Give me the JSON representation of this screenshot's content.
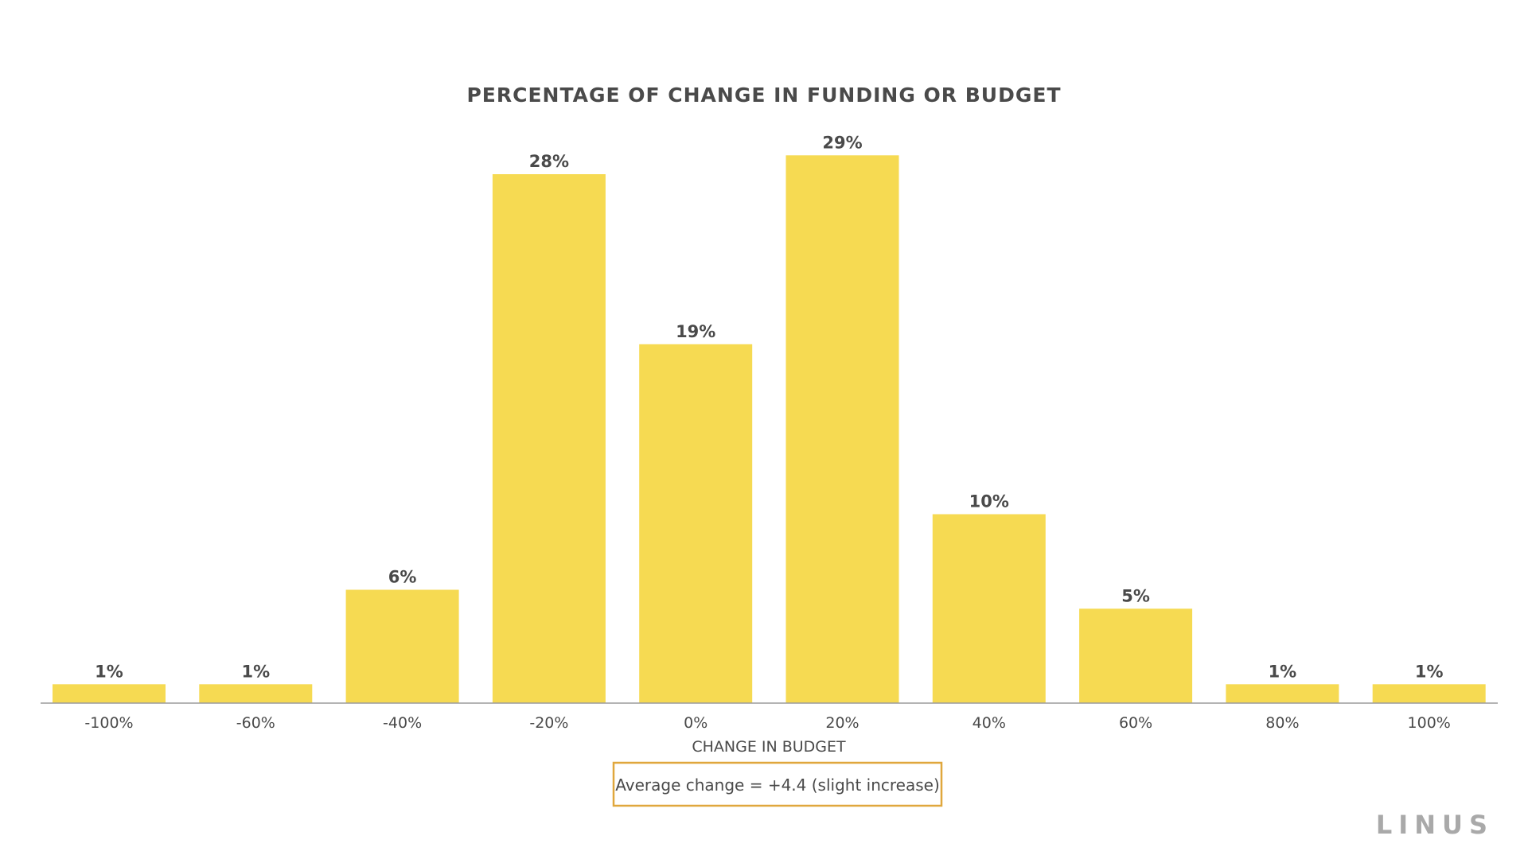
{
  "chart_data": {
    "type": "bar",
    "title": "PERCENTAGE OF CHANGE IN FUNDING OR BUDGET",
    "xlabel": "CHANGE IN BUDGET",
    "ylabel": "",
    "categories": [
      "-100%",
      "-60%",
      "-40%",
      "-20%",
      "0%",
      "20%",
      "40%",
      "60%",
      "80%",
      "100%"
    ],
    "values": [
      1,
      1,
      6,
      28,
      19,
      29,
      10,
      5,
      1,
      1
    ],
    "data_labels": [
      "1%",
      "1%",
      "6%",
      "28%",
      "19%",
      "29%",
      "10%",
      "5%",
      "1%",
      "1%"
    ],
    "ylim": [
      0,
      30
    ],
    "grid": false,
    "legend": "none",
    "bar_color": "#f6da52"
  },
  "note": {
    "text": "Average change = +4.4 (slight increase)",
    "border_color": "#e0a73d"
  },
  "logo": {
    "text": "LINUS",
    "color": "#a9a9a9"
  },
  "colors": {
    "text": "#4a4a4a",
    "axis": "#9b9b9b"
  }
}
